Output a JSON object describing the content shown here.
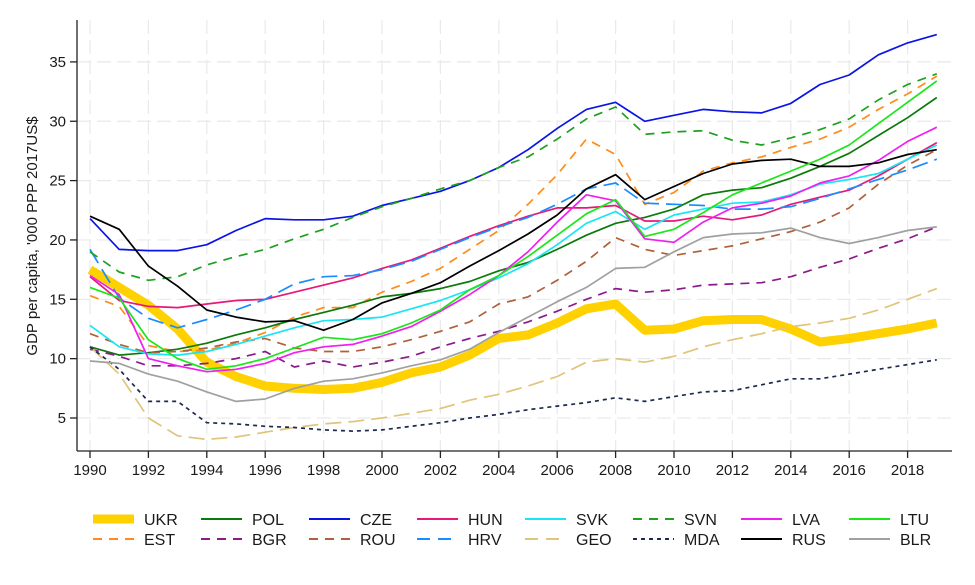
{
  "chart_data": {
    "type": "line",
    "title": "",
    "xlabel": "",
    "ylabel": "GDP per capita, '000 PPP 2017US$",
    "xlim": [
      1990,
      2019
    ],
    "ylim": [
      2.7,
      38.2
    ],
    "x_ticks": [
      1990,
      1992,
      1994,
      1996,
      1998,
      2000,
      2002,
      2004,
      2006,
      2008,
      2010,
      2012,
      2014,
      2016,
      2018
    ],
    "x_tick_labels": [
      "1990",
      "1992",
      "1994",
      "1996",
      "1998",
      "2000",
      "2002",
      "2004",
      "2006",
      "2008",
      "2010",
      "2012",
      "2014",
      "2016",
      "2018"
    ],
    "y_ticks": [
      5,
      10,
      15,
      20,
      25,
      30,
      35
    ],
    "y_tick_labels": [
      "5",
      "10",
      "15",
      "20",
      "25",
      "30",
      "35"
    ],
    "grid": true,
    "legend_position": "bottom",
    "x": [
      1990,
      1991,
      1992,
      1993,
      1994,
      1995,
      1996,
      1997,
      1998,
      1999,
      2000,
      2001,
      2002,
      2003,
      2004,
      2005,
      2006,
      2007,
      2008,
      2009,
      2010,
      2011,
      2012,
      2013,
      2014,
      2015,
      2016,
      2017,
      2018,
      2019
    ],
    "series": [
      {
        "name": "UKR",
        "color": "#ffd100",
        "style": "solid",
        "width": "thick",
        "values": [
          17.5,
          16.0,
          14.5,
          12.5,
          9.7,
          8.5,
          7.7,
          7.5,
          7.4,
          7.5,
          8.0,
          8.8,
          9.3,
          10.3,
          11.7,
          12.0,
          13.0,
          14.2,
          14.6,
          12.4,
          12.5,
          13.2,
          13.3,
          13.3,
          12.5,
          11.4,
          11.7,
          12.1,
          12.5,
          13.0
        ]
      },
      {
        "name": "EST",
        "color": "#ff8c1a",
        "style": "dash",
        "width": "normal",
        "values": [
          15.3,
          14.4,
          11.1,
          10.6,
          10.7,
          11.3,
          12.2,
          13.5,
          14.3,
          14.3,
          15.6,
          16.5,
          17.6,
          19.2,
          20.8,
          23.0,
          25.5,
          28.5,
          27.2,
          23.0,
          24.0,
          25.8,
          26.5,
          27.0,
          27.8,
          28.5,
          29.5,
          31.0,
          32.3,
          33.8
        ]
      },
      {
        "name": "POL",
        "color": "#0b7a0b",
        "style": "solid",
        "width": "normal",
        "values": [
          11.0,
          10.3,
          10.5,
          10.8,
          11.3,
          12.0,
          12.6,
          13.3,
          13.9,
          14.5,
          15.2,
          15.5,
          15.9,
          16.5,
          17.4,
          18.1,
          19.2,
          20.4,
          21.4,
          21.9,
          22.6,
          23.8,
          24.2,
          24.4,
          25.2,
          26.2,
          27.3,
          28.8,
          30.3,
          32.0
        ]
      },
      {
        "name": "BGR",
        "color": "#8b1a8b",
        "style": "dash",
        "width": "normal",
        "values": [
          10.8,
          10.2,
          9.4,
          9.4,
          9.6,
          10.0,
          10.6,
          9.3,
          9.8,
          9.3,
          9.7,
          10.2,
          11.0,
          11.7,
          12.3,
          13.1,
          14.0,
          15.0,
          15.9,
          15.6,
          15.8,
          16.2,
          16.3,
          16.4,
          16.9,
          17.7,
          18.4,
          19.3,
          20.1,
          21.1
        ]
      },
      {
        "name": "CZE",
        "color": "#0a14e6",
        "style": "solid",
        "width": "normal",
        "values": [
          21.8,
          19.2,
          19.1,
          19.1,
          19.6,
          20.8,
          21.8,
          21.7,
          21.7,
          22.0,
          22.9,
          23.5,
          24.1,
          25.0,
          26.1,
          27.6,
          29.4,
          31.0,
          31.6,
          30.0,
          30.5,
          31.0,
          30.8,
          30.7,
          31.5,
          33.1,
          33.9,
          35.6,
          36.6,
          37.3
        ]
      },
      {
        "name": "ROU",
        "color": "#b0603a",
        "style": "dash",
        "width": "normal",
        "values": [
          12.1,
          11.2,
          10.5,
          10.6,
          10.9,
          11.4,
          11.7,
          10.9,
          10.6,
          10.6,
          11.0,
          11.6,
          12.3,
          13.1,
          14.6,
          15.2,
          16.6,
          18.2,
          20.2,
          19.2,
          18.7,
          19.1,
          19.5,
          20.1,
          20.7,
          21.5,
          22.7,
          24.7,
          26.3,
          27.6
        ]
      },
      {
        "name": "HUN",
        "color": "#e6197a",
        "style": "solid",
        "width": "normal",
        "values": [
          16.9,
          14.9,
          14.4,
          14.3,
          14.6,
          14.9,
          15.0,
          15.6,
          16.2,
          16.8,
          17.6,
          18.3,
          19.3,
          20.3,
          21.2,
          22.0,
          22.7,
          22.7,
          22.9,
          21.6,
          21.6,
          22.0,
          21.7,
          22.1,
          23.0,
          23.6,
          24.2,
          25.4,
          26.8,
          28.2
        ]
      },
      {
        "name": "HRV",
        "color": "#1a8cff",
        "style": "longdash",
        "width": "normal",
        "values": [
          19.2,
          15.1,
          13.4,
          12.6,
          13.3,
          14.1,
          15.0,
          16.3,
          16.9,
          17.0,
          17.5,
          18.2,
          19.2,
          20.2,
          21.1,
          21.9,
          23.0,
          24.3,
          24.8,
          23.1,
          23.0,
          22.9,
          22.6,
          22.6,
          22.8,
          23.5,
          24.3,
          25.1,
          25.9,
          26.8
        ]
      },
      {
        "name": "SVK",
        "color": "#19e6f2",
        "style": "solid",
        "width": "normal",
        "values": [
          12.8,
          11.0,
          10.4,
          10.3,
          10.6,
          11.2,
          11.9,
          12.6,
          13.2,
          13.3,
          13.5,
          14.2,
          14.9,
          15.8,
          16.8,
          18.0,
          19.6,
          21.4,
          22.4,
          20.9,
          22.1,
          22.6,
          23.1,
          23.2,
          23.8,
          24.7,
          25.1,
          25.6,
          26.8,
          28.0
        ]
      },
      {
        "name": "GEO",
        "color": "#e0c47a",
        "style": "longdash",
        "width": "normal",
        "values": [
          11.0,
          8.7,
          5.0,
          3.5,
          3.2,
          3.4,
          3.8,
          4.2,
          4.5,
          4.7,
          5.0,
          5.4,
          5.8,
          6.5,
          7.0,
          7.7,
          8.5,
          9.7,
          10.0,
          9.7,
          10.2,
          11.0,
          11.6,
          12.1,
          12.7,
          13.0,
          13.4,
          14.1,
          15.0,
          15.9
        ]
      },
      {
        "name": "SVN",
        "color": "#1fa01f",
        "style": "dash",
        "width": "normal",
        "values": [
          19.0,
          17.3,
          16.6,
          16.9,
          17.9,
          18.6,
          19.2,
          20.1,
          20.9,
          21.9,
          22.8,
          23.5,
          24.3,
          25.0,
          26.1,
          27.0,
          28.5,
          30.2,
          31.2,
          28.9,
          29.1,
          29.2,
          28.4,
          28.0,
          28.6,
          29.3,
          30.2,
          31.8,
          33.1,
          34.0
        ]
      },
      {
        "name": "MDA",
        "color": "#1c2a50",
        "style": "shortdash",
        "width": "normal",
        "values": [
          11.0,
          9.1,
          6.4,
          6.4,
          4.6,
          4.5,
          4.3,
          4.2,
          4.0,
          3.9,
          4.0,
          4.3,
          4.6,
          5.0,
          5.3,
          5.7,
          6.0,
          6.3,
          6.7,
          6.4,
          6.8,
          7.2,
          7.3,
          7.8,
          8.3,
          8.3,
          8.7,
          9.1,
          9.5,
          9.9
        ]
      },
      {
        "name": "LVA",
        "color": "#f01ef0",
        "style": "solid",
        "width": "normal",
        "values": [
          17.0,
          15.4,
          10.0,
          9.4,
          8.9,
          9.1,
          9.6,
          10.5,
          11.0,
          11.2,
          11.9,
          12.7,
          14.0,
          15.4,
          17.0,
          19.0,
          21.5,
          23.8,
          23.3,
          20.1,
          19.8,
          21.5,
          22.7,
          23.1,
          23.7,
          24.8,
          25.4,
          26.7,
          28.3,
          29.5
        ]
      },
      {
        "name": "RUS",
        "color": "#000000",
        "style": "solid",
        "width": "normal",
        "values": [
          22.0,
          20.9,
          17.8,
          16.1,
          14.1,
          13.5,
          13.1,
          13.2,
          12.4,
          13.3,
          14.7,
          15.5,
          16.4,
          17.8,
          19.1,
          20.5,
          22.1,
          24.3,
          25.5,
          23.4,
          24.5,
          25.6,
          26.4,
          26.7,
          26.8,
          26.2,
          26.2,
          26.5,
          27.2,
          27.6
        ]
      },
      {
        "name": "LTU",
        "color": "#1ae61a",
        "style": "solid",
        "width": "normal",
        "values": [
          16.0,
          15.1,
          11.6,
          10.0,
          9.1,
          9.4,
          10.0,
          10.9,
          11.8,
          11.6,
          12.1,
          13.0,
          14.1,
          15.8,
          17.0,
          18.6,
          20.4,
          22.2,
          23.4,
          20.3,
          20.9,
          22.3,
          23.8,
          24.8,
          25.8,
          26.8,
          28.0,
          29.8,
          31.6,
          33.4
        ]
      },
      {
        "name": "BLR",
        "color": "#a0a0a0",
        "style": "solid",
        "width": "normal",
        "values": [
          9.8,
          9.6,
          8.7,
          8.1,
          7.2,
          6.4,
          6.6,
          7.5,
          8.1,
          8.3,
          8.8,
          9.4,
          9.9,
          10.8,
          12.2,
          13.5,
          14.8,
          16.0,
          17.6,
          17.7,
          19.0,
          20.2,
          20.5,
          20.6,
          21.0,
          20.2,
          19.7,
          20.2,
          20.8,
          21.1
        ]
      }
    ]
  }
}
